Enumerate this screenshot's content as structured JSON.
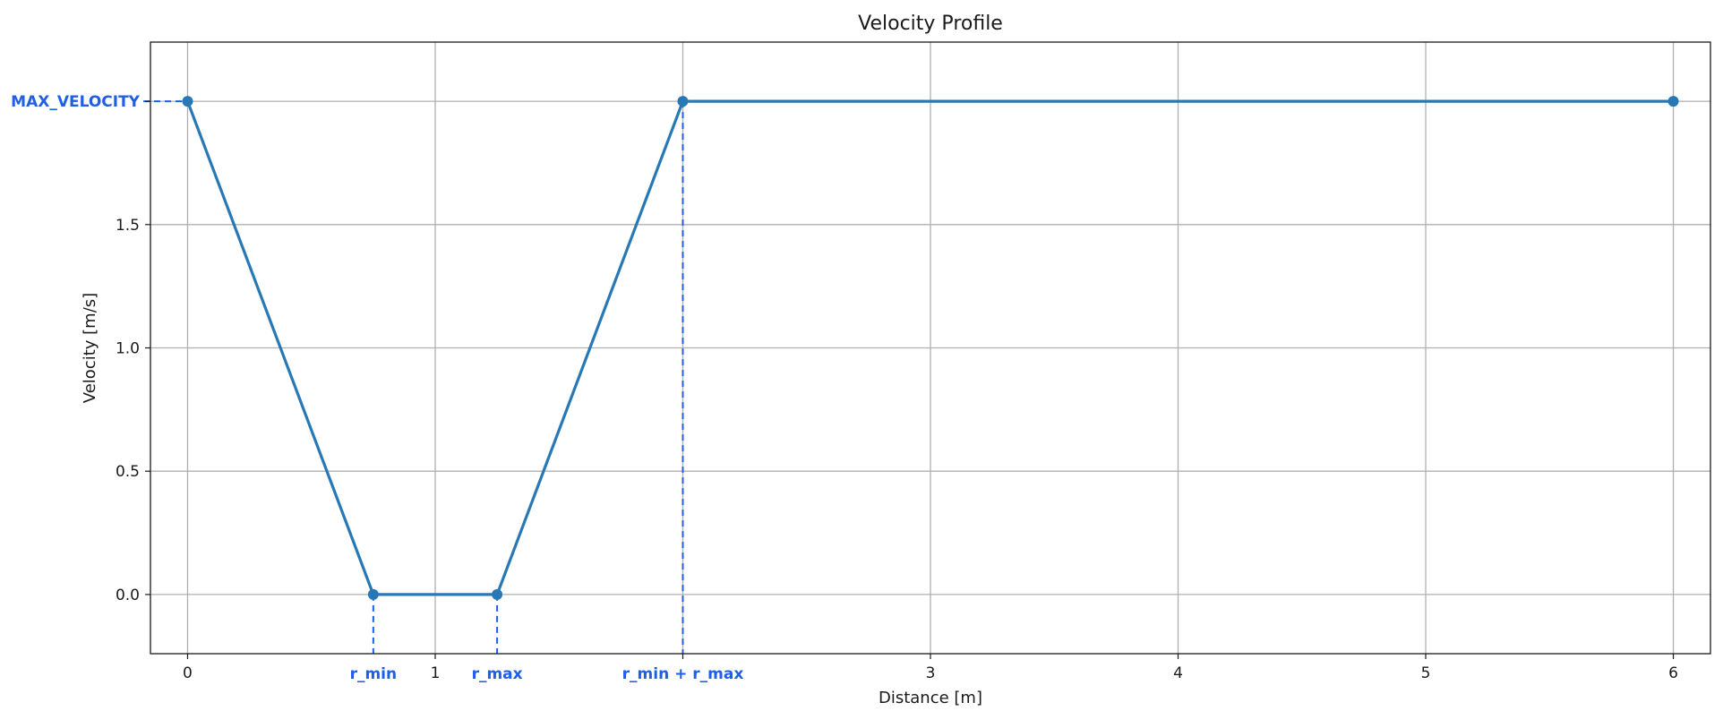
{
  "chart_data": {
    "type": "line",
    "title": "Velocity Profile",
    "xlabel": "Distance [m]",
    "ylabel": "Velocity [m/s]",
    "xlim": [
      -0.15,
      6.15
    ],
    "ylim": [
      -0.24,
      2.24
    ],
    "grid": true,
    "x_ticks": [
      {
        "value": 0,
        "label": "0"
      },
      {
        "value": 1,
        "label": "1"
      },
      {
        "value": 2,
        "label": ""
      },
      {
        "value": 3,
        "label": "3"
      },
      {
        "value": 4,
        "label": "4"
      },
      {
        "value": 5,
        "label": "5"
      },
      {
        "value": 6,
        "label": "6"
      }
    ],
    "y_ticks": [
      {
        "value": 0.0,
        "label": "0.0"
      },
      {
        "value": 0.5,
        "label": "0.5"
      },
      {
        "value": 1.0,
        "label": "1.0"
      },
      {
        "value": 1.5,
        "label": "1.5"
      },
      {
        "value": 2.0,
        "label": ""
      }
    ],
    "series": [
      {
        "color": "#2878b5",
        "x": [
          0,
          0.75,
          1.25,
          2.0,
          6.0
        ],
        "y": [
          2.0,
          0.0,
          0.0,
          2.0,
          2.0
        ]
      }
    ],
    "annotations": {
      "color": "#1f5fe8",
      "vertical": [
        {
          "x": 0.75,
          "y": 0.0,
          "label": "r_min"
        },
        {
          "x": 1.25,
          "y": 0.0,
          "label": "r_max"
        },
        {
          "x": 2.0,
          "y": 2.0,
          "label": "r_min + r_max"
        }
      ],
      "horizontal": [
        {
          "x": 0,
          "y": 2.0,
          "label": "MAX_VELOCITY"
        }
      ]
    }
  }
}
